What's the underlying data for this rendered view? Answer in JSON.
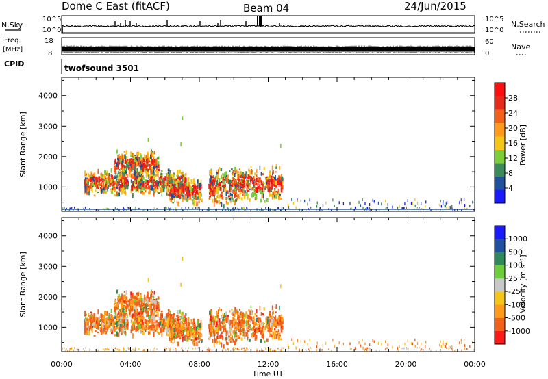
{
  "header": {
    "station": "Dome C East (fitACF)",
    "beam": "Beam 04",
    "date": "24/Jun/2015"
  },
  "nsky": {
    "label": "N.Sky",
    "tick_top": "10^5",
    "tick_bottom": "10^0",
    "right_label": "N.Search",
    "right_tick_top": "10^5",
    "right_tick_bottom": "10^0"
  },
  "freq": {
    "label_line1": "Freq.",
    "label_line2": "[MHz]",
    "tick_top": "18",
    "tick_bottom": "8",
    "right_label": "Nave",
    "right_tick_top": "60",
    "right_tick_bottom": "0"
  },
  "cpid": {
    "label": "CPID",
    "value": "twofsound 3501"
  },
  "colors": {
    "power": [
      "#1a1aff",
      "#2050a0",
      "#3a8a5a",
      "#7ccd3a",
      "#f5c518",
      "#ff9a1a",
      "#f2601a",
      "#e82a1a",
      "#ff1010"
    ],
    "velocity": [
      "#ff1a1a",
      "#f2601a",
      "#ff9a1a",
      "#f5c518",
      "#c8c8c8",
      "#6ccc3a",
      "#2e8a5a",
      "#2050a0",
      "#1a1aff"
    ]
  },
  "chart_data": [
    {
      "type": "heatmap",
      "name": "power",
      "ylabel": "Slant Range [km]",
      "y_ticks": [
        "1000",
        "2000",
        "3000",
        "4000"
      ],
      "ylim": [
        200,
        4600
      ],
      "colorbar_label": "Power [dB]",
      "colorbar_ticks": [
        "4",
        "8",
        "12",
        "16",
        "20",
        "24",
        "28"
      ],
      "colorbar_range": [
        0,
        32
      ],
      "x_ticks": [
        "00:00",
        "04:00",
        "08:00",
        "12:00",
        "16:00",
        "20:00",
        "00:00"
      ],
      "xlim_hours": [
        0,
        24
      ],
      "echo_regions": [
        {
          "t_start": 1.3,
          "t_end": 3.8,
          "range_low": 700,
          "range_high": 1600
        },
        {
          "t_start": 3.0,
          "t_end": 5.6,
          "range_low": 1300,
          "range_high": 2200
        },
        {
          "t_start": 4.0,
          "t_end": 7.2,
          "range_low": 700,
          "range_high": 1600
        },
        {
          "t_start": 6.2,
          "t_end": 8.1,
          "range_low": 400,
          "range_high": 1300
        },
        {
          "t_start": 8.5,
          "t_end": 10.2,
          "range_low": 300,
          "range_high": 1700
        },
        {
          "t_start": 10.0,
          "t_end": 12.8,
          "range_low": 500,
          "range_high": 1700
        }
      ],
      "near_range_band": {
        "t_start": 0,
        "t_end": 24,
        "range_km": 250
      }
    },
    {
      "type": "heatmap",
      "name": "velocity",
      "ylabel": "Slant Range [km]",
      "y_ticks": [
        "1000",
        "2000",
        "3000",
        "4000"
      ],
      "ylim": [
        200,
        4600
      ],
      "colorbar_label": "Velocity [m s⁻¹]",
      "colorbar_ticks": [
        "-1000",
        "-500",
        "-100",
        "-25",
        "25",
        "100",
        "500",
        "1000"
      ],
      "x_ticks": [
        "00:00",
        "04:00",
        "08:00",
        "12:00",
        "16:00",
        "20:00",
        "00:00"
      ],
      "xlabel": "Time UT",
      "xlim_hours": [
        0,
        24
      ],
      "dominant_velocity": "-100 to -500"
    }
  ]
}
